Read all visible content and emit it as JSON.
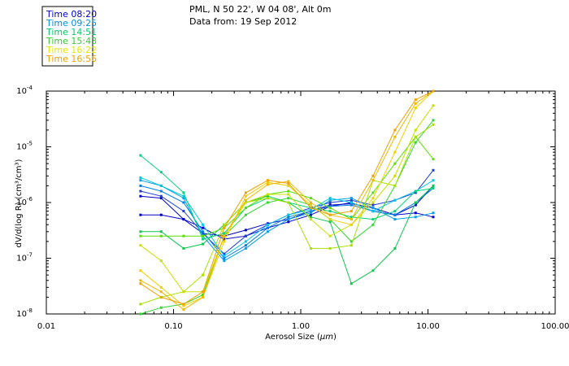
{
  "chart_data": {
    "type": "line",
    "title": "PML, N 50 22', W 04 08', Alt 0m",
    "subtitle": "Data from: 19 Sep 2012",
    "xlabel": "Aerosol Size (",
    "xlabel_unit": "μm",
    "xlabel_end": ")",
    "ylabel": "dV/d(log R) (cm³/cm³)",
    "x_scale": "log",
    "y_scale": "log",
    "xlim": [
      0.01,
      100
    ],
    "ylim": [
      1e-08,
      0.0001
    ],
    "x_ticks": [
      {
        "value": 0.01,
        "label": "0.01"
      },
      {
        "value": 0.1,
        "label": "0.10"
      },
      {
        "value": 1,
        "label": "1.00"
      },
      {
        "value": 10,
        "label": "10.00"
      },
      {
        "value": 100,
        "label": "100.00"
      }
    ],
    "y_ticks": [
      {
        "value": 1e-08,
        "base": "10",
        "exp": "-8"
      },
      {
        "value": 1e-07,
        "base": "10",
        "exp": "-7"
      },
      {
        "value": 1e-06,
        "base": "10",
        "exp": "-6"
      },
      {
        "value": 1e-05,
        "base": "10",
        "exp": "-5"
      },
      {
        "value": 0.0001,
        "base": "10",
        "exp": "-4"
      }
    ],
    "x": [
      0.055,
      0.08,
      0.12,
      0.17,
      0.25,
      0.37,
      0.55,
      0.8,
      1.2,
      1.7,
      2.5,
      3.7,
      5.5,
      8.0,
      11.0
    ],
    "series": [
      {
        "name": "Time 08:20",
        "color": "#0000cc",
        "values": [
          1.3e-06,
          1.2e-06,
          5e-07,
          2.8e-07,
          2.5e-07,
          3.2e-07,
          4.2e-07,
          5e-07,
          7e-07,
          9e-07,
          9.5e-07,
          8e-07,
          6e-07,
          9e-07,
          2e-06
        ]
      },
      {
        "name": "Time 08:20",
        "color": "#0000cc",
        "values": [
          6e-07,
          6e-07,
          5e-07,
          3.5e-07,
          2.2e-07,
          2.5e-07,
          3.5e-07,
          4.5e-07,
          6e-07,
          8.5e-07,
          1e-06,
          7e-07,
          6e-07,
          6.5e-07,
          5.5e-07
        ]
      },
      {
        "name": "Time 08:20",
        "color": "#1e3cd6",
        "values": [
          1.6e-06,
          1.3e-06,
          7e-07,
          2.8e-07,
          1.2e-07,
          2.5e-07,
          4e-07,
          6e-07,
          8e-07,
          1e-06,
          1.1e-06,
          9e-07,
          1.1e-06,
          1.5e-06,
          3.8e-06
        ]
      },
      {
        "name": "Time 09:25",
        "color": "#0080e6",
        "values": [
          2e-06,
          1.6e-06,
          1e-06,
          3e-07,
          1e-07,
          1.7e-07,
          3.5e-07,
          5.5e-07,
          7e-07,
          8.5e-07,
          9e-07,
          7e-07,
          6e-07,
          1e-06,
          1.8e-06
        ]
      },
      {
        "name": "Time 09:25",
        "color": "#00a0e8",
        "values": [
          2.5e-06,
          2e-06,
          1.2e-06,
          2.5e-07,
          9e-08,
          1.5e-07,
          3e-07,
          5e-07,
          6.5e-07,
          1.1e-06,
          1.2e-06,
          8e-07,
          5e-07,
          5.5e-07,
          6.5e-07
        ]
      },
      {
        "name": "Time 09:25",
        "color": "#00c8e8",
        "values": [
          2.8e-06,
          2e-06,
          1.3e-06,
          4e-07,
          1.1e-07,
          2e-07,
          4e-07,
          6e-07,
          7.5e-07,
          1.2e-06,
          1e-06,
          7e-07,
          1.1e-06,
          1.6e-06,
          2.5e-06
        ]
      },
      {
        "name": "Time 14:51",
        "color": "#00d27a",
        "values": [
          7e-06,
          3.5e-06,
          1.5e-06,
          2.2e-07,
          2.8e-07,
          8e-07,
          1.2e-06,
          1e-06,
          8e-07,
          7e-07,
          5.5e-07,
          5e-07,
          7e-07,
          1.6e-06,
          1.8e-06
        ]
      },
      {
        "name": "Time 14:51",
        "color": "#10c850",
        "values": [
          3e-07,
          3e-07,
          1.5e-07,
          1.8e-07,
          4e-07,
          1e-06,
          1.3e-06,
          1e-06,
          5.5e-07,
          4.5e-07,
          3.5e-08,
          6e-08,
          1.5e-07,
          1e-06,
          2e-06
        ]
      },
      {
        "name": "Time 15:43",
        "color": "#30d830",
        "values": [
          1e-08,
          1.3e-08,
          1.5e-08,
          2.2e-08,
          2.5e-07,
          6e-07,
          1e-06,
          1.2e-06,
          9e-07,
          5e-07,
          2e-07,
          4e-07,
          2e-06,
          1.2e-05,
          3e-05
        ]
      },
      {
        "name": "Time 15:43",
        "color": "#58e000",
        "values": [
          2.5e-07,
          2.5e-07,
          2.5e-07,
          2.5e-07,
          3.5e-07,
          8e-07,
          1.4e-06,
          1.6e-06,
          1.2e-06,
          8e-07,
          5e-07,
          1.5e-06,
          5e-06,
          1.5e-05,
          6e-06
        ]
      },
      {
        "name": "Time 16:22",
        "color": "#a8e000",
        "values": [
          1.5e-08,
          2e-08,
          2.5e-08,
          5e-08,
          4e-07,
          1e-06,
          1.2e-06,
          1e-06,
          1.5e-07,
          1.5e-07,
          1.7e-07,
          2.5e-06,
          2e-06,
          1.5e-05,
          2.5e-05
        ]
      },
      {
        "name": "Time 16:22",
        "color": "#c8e000",
        "values": [
          1.7e-07,
          9e-08,
          2.5e-08,
          2.5e-08,
          2.5e-07,
          1e-06,
          1.4e-06,
          1.4e-06,
          5e-07,
          2.5e-07,
          4e-07,
          1e-06,
          3e-06,
          2e-05,
          5.5e-05
        ]
      },
      {
        "name": "Time 16:56",
        "color": "#f0d000",
        "values": [
          6e-08,
          3e-08,
          1.4e-08,
          2e-08,
          2e-07,
          1.3e-06,
          2.3e-06,
          2e-06,
          9e-07,
          5e-07,
          4e-07,
          1.2e-06,
          8e-06,
          5e-05,
          0.0001
        ]
      },
      {
        "name": "Time 16:56",
        "color": "#f0b800",
        "values": [
          4e-08,
          2.5e-08,
          1.2e-08,
          2e-08,
          2.5e-07,
          1.1e-06,
          2.1e-06,
          2.4e-06,
          1e-06,
          6e-07,
          5e-07,
          2.5e-06,
          1.5e-05,
          6e-05,
          0.0001
        ]
      },
      {
        "name": "Time 16:56",
        "color": "#f0a000",
        "values": [
          3.5e-08,
          2e-08,
          1.5e-08,
          2.5e-08,
          3.5e-07,
          1.5e-06,
          2.5e-06,
          2.2e-06,
          8e-07,
          6e-07,
          7e-07,
          3e-06,
          2e-05,
          7e-05,
          0.0001
        ]
      }
    ],
    "legend": [
      {
        "label": "Time 08:20",
        "color": "#0000cc"
      },
      {
        "label": "Time 09:25",
        "color": "#0090e0"
      },
      {
        "label": "Time 14:51",
        "color": "#00cc66"
      },
      {
        "label": "Time 15:43",
        "color": "#33cc33"
      },
      {
        "label": "Time 16:22",
        "color": "#e6e600"
      },
      {
        "label": "Time 16:56",
        "color": "#f0a000"
      }
    ]
  }
}
